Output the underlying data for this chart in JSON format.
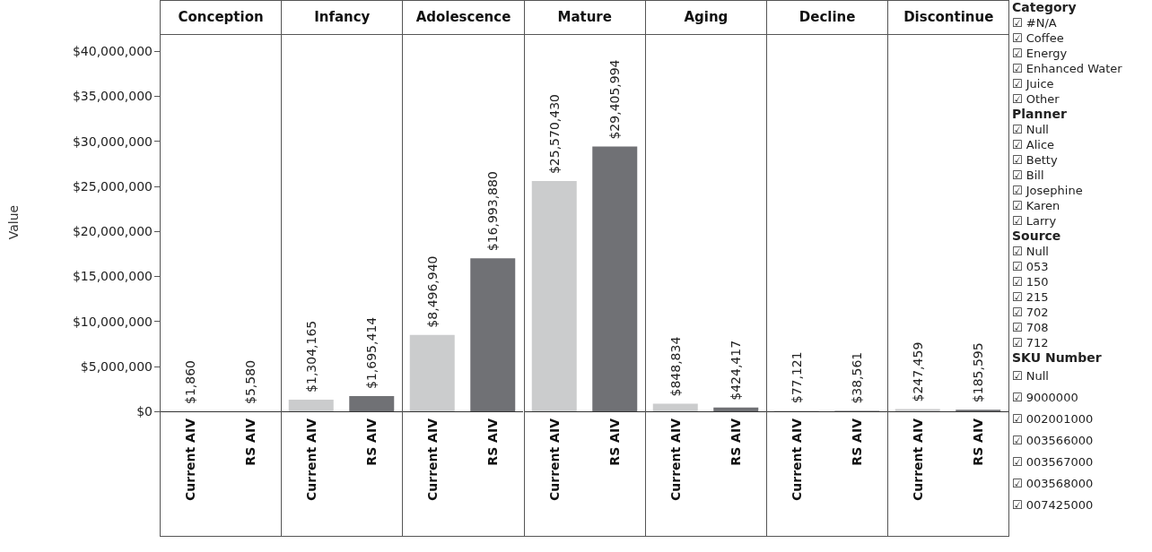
{
  "chart_data": [
    {
      "type": "bar",
      "title": "Conception",
      "ylabel": "Value",
      "categories": [
        "Current AIV",
        "RS AIV"
      ],
      "values": [
        1860,
        5580
      ],
      "colors": [
        "#cbcccd",
        "#707175"
      ],
      "value_labels": [
        "$1,860",
        "$5,580"
      ],
      "ylim": [
        0,
        42000000
      ],
      "yticks": [
        {
          "value": 0,
          "label": "$0"
        },
        {
          "value": 5000000,
          "label": "$5,000,000"
        },
        {
          "value": 10000000,
          "label": "$10,000,000"
        },
        {
          "value": 15000000,
          "label": "$15,000,000"
        },
        {
          "value": 20000000,
          "label": "$20,000,000"
        },
        {
          "value": 25000000,
          "label": "$25,000,000"
        },
        {
          "value": 30000000,
          "label": "$30,000,000"
        },
        {
          "value": 35000000,
          "label": "$35,000,000"
        },
        {
          "value": 40000000,
          "label": "$40,000,000"
        }
      ]
    },
    {
      "type": "bar",
      "title": "Infancy",
      "categories": [
        "Current AIV",
        "RS AIV"
      ],
      "values": [
        1304165,
        1695414
      ],
      "colors": [
        "#cbcccd",
        "#707175"
      ],
      "value_labels": [
        "$1,304,165",
        "$1,695,414"
      ],
      "ylim": [
        0,
        42000000
      ],
      "tick_labels": "x"
    },
    {
      "type": "bar",
      "title": "Adolescence",
      "categories": [
        "Current AIV",
        "RS AIV"
      ],
      "values": [
        8496940,
        16993880
      ],
      "colors": [
        "#cbcccd",
        "#707175"
      ],
      "value_labels": [
        "$8,496,940",
        "$16,993,880"
      ],
      "ylim": [
        0,
        42000000
      ],
      "tick_labels": "x"
    },
    {
      "type": "bar",
      "title": "Mature",
      "categories": [
        "Current AIV",
        "RS AIV"
      ],
      "values": [
        25570430,
        29405994
      ],
      "colors": [
        "#cbcccd",
        "#707175"
      ],
      "value_labels": [
        "$25,570,430",
        "$29,405,994"
      ],
      "ylim": [
        0,
        42000000
      ],
      "tick_labels": "x"
    },
    {
      "type": "bar",
      "title": "Aging",
      "categories": [
        "Current AIV",
        "RS AIV"
      ],
      "values": [
        848834,
        424417
      ],
      "colors": [
        "#cbcccd",
        "#707175"
      ],
      "value_labels": [
        "$848,834",
        "$424,417"
      ],
      "ylim": [
        0,
        42000000
      ],
      "tick_labels": "x"
    },
    {
      "type": "bar",
      "title": "Decline",
      "categories": [
        "Current AIV",
        "RS AIV"
      ],
      "values": [
        77121,
        38561
      ],
      "colors": [
        "#cbcccd",
        "#707175"
      ],
      "value_labels": [
        "$77,121",
        "$38,561"
      ],
      "ylim": [
        0,
        42000000
      ],
      "tick_labels": "x"
    },
    {
      "type": "bar",
      "title": "Discontinue",
      "categories": [
        "Current AIV",
        "RS AIV"
      ],
      "values": [
        247459,
        185595
      ],
      "colors": [
        "#cbcccd",
        "#707175"
      ],
      "value_labels": [
        "$247,459",
        "$185,595"
      ],
      "ylim": [
        0,
        42000000
      ],
      "tick_labels": "x"
    },
    {
      "type": "other",
      "title": "Category",
      "annotations": [
        "☑ #N/A",
        "☑ Coffee",
        "☑ Energy",
        "☑ Enhanced Water",
        "☑ Juice",
        "☑ Other"
      ]
    },
    {
      "type": "other",
      "title": "Planner",
      "annotations": [
        "☑ Null",
        "☑ Alice",
        "☑ Betty",
        "☑ Bill",
        "☑ Josephine",
        "☑ Karen",
        "☑ Larry"
      ]
    },
    {
      "type": "other",
      "title": "Source",
      "annotations": [
        "☑ Null",
        "☑ 053",
        "☑ 150",
        "☑ 215",
        "☑ 702",
        "☑ 708",
        "☑ 712"
      ]
    },
    {
      "type": "other",
      "title": "SKU Number",
      "annotations": [
        "☑ Null",
        "☑ 9000000",
        "☑ 002001000",
        "☑ 003566000",
        "☑ 003567000",
        "☑ 003568000",
        "☑ 007425000"
      ]
    }
  ]
}
